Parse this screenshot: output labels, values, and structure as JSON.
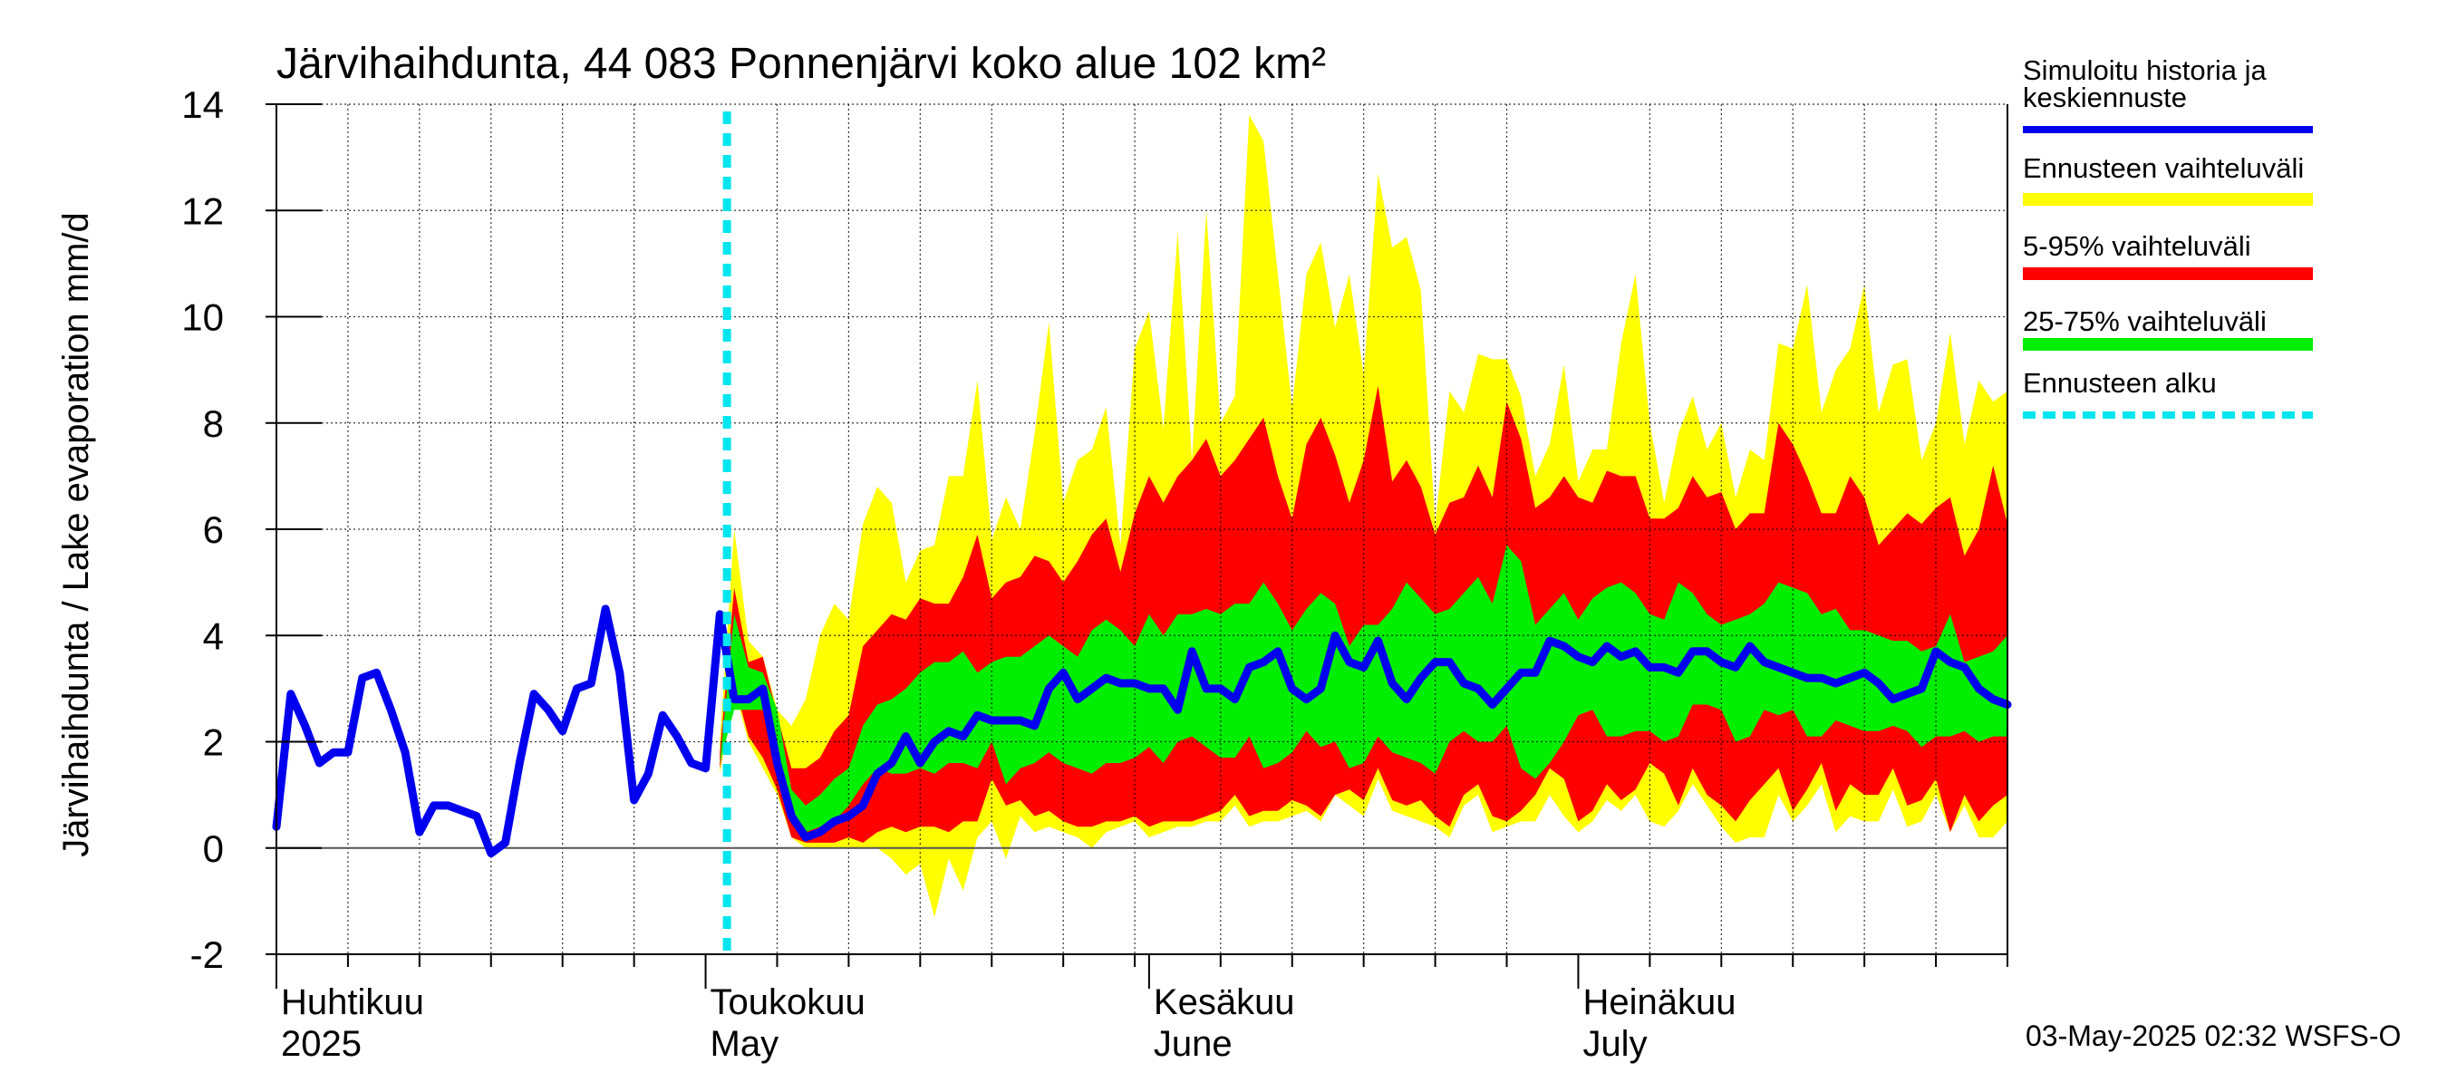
{
  "chart_data": {
    "type": "area",
    "title": "Järvihaihdunta, 44 083 Ponnenjärvi koko alue 102 km²",
    "ylabel": "Järvihaihdunta / Lake evaporation   mm/d",
    "xlabel": "",
    "ylim": [
      -2,
      14
    ],
    "yticks": [
      "-2",
      "0",
      "2",
      "4",
      "6",
      "8",
      "10",
      "12",
      "14"
    ],
    "x_start": "2025-04-01",
    "x_end": "2025-07-31",
    "grid": true,
    "legend_position": "right",
    "month_labels": [
      {
        "date": "2025-04-01",
        "line1": "Huhtikuu",
        "line2": "2025"
      },
      {
        "date": "2025-05-01",
        "line1": "Toukokuu",
        "line2": "May"
      },
      {
        "date": "2025-06-01",
        "line1": "Kesäkuu",
        "line2": "June"
      },
      {
        "date": "2025-07-01",
        "line1": "Heinäkuu",
        "line2": "July"
      }
    ],
    "forecast_start": "2025-05-03",
    "timestamp": "03-May-2025 02:32 WSFS-O",
    "legend": [
      {
        "label": "Simuloitu historia ja",
        "label2": "keskiennuste",
        "color": "#0000ee",
        "kind": "line"
      },
      {
        "label": "Ennusteen vaihteluväli",
        "color": "#ffff00",
        "kind": "band"
      },
      {
        "label": "5-95% vaihteluväli",
        "color": "#ff0000",
        "kind": "band"
      },
      {
        "label": "25-75% vaihteluväli",
        "color": "#00ee00",
        "kind": "band"
      },
      {
        "label": "Ennusteen alku",
        "color": "#00e5ee",
        "kind": "dashed"
      }
    ],
    "forecast_dates": [
      "2025-05-02",
      "2025-05-03",
      "2025-05-04",
      "2025-05-05",
      "2025-05-06",
      "2025-05-07",
      "2025-05-08",
      "2025-05-09",
      "2025-05-10",
      "2025-05-11",
      "2025-05-12",
      "2025-05-13",
      "2025-05-14",
      "2025-05-15",
      "2025-05-16",
      "2025-05-17",
      "2025-05-18",
      "2025-05-19",
      "2025-05-20",
      "2025-05-21",
      "2025-05-22",
      "2025-05-23",
      "2025-05-24",
      "2025-05-25",
      "2025-05-26",
      "2025-05-27",
      "2025-05-28",
      "2025-05-29",
      "2025-05-30",
      "2025-05-31",
      "2025-06-01",
      "2025-06-02",
      "2025-06-03",
      "2025-06-04",
      "2025-06-05",
      "2025-06-06",
      "2025-06-07",
      "2025-06-08",
      "2025-06-09",
      "2025-06-10",
      "2025-06-11",
      "2025-06-12",
      "2025-06-13",
      "2025-06-14",
      "2025-06-15",
      "2025-06-16",
      "2025-06-17",
      "2025-06-18",
      "2025-06-19",
      "2025-06-20",
      "2025-06-21",
      "2025-06-22",
      "2025-06-23",
      "2025-06-24",
      "2025-06-25",
      "2025-06-26",
      "2025-06-27",
      "2025-06-28",
      "2025-06-29",
      "2025-06-30",
      "2025-07-01",
      "2025-07-02",
      "2025-07-03",
      "2025-07-04",
      "2025-07-05",
      "2025-07-06",
      "2025-07-07",
      "2025-07-08",
      "2025-07-09",
      "2025-07-10",
      "2025-07-11",
      "2025-07-12",
      "2025-07-13",
      "2025-07-14",
      "2025-07-15",
      "2025-07-16",
      "2025-07-17",
      "2025-07-18",
      "2025-07-19",
      "2025-07-20",
      "2025-07-21",
      "2025-07-22",
      "2025-07-23",
      "2025-07-24",
      "2025-07-25",
      "2025-07-26",
      "2025-07-27",
      "2025-07-28",
      "2025-07-29",
      "2025-07-30",
      "2025-07-31"
    ],
    "series": [
      {
        "name": "Ennusteen vaihteluväli",
        "role": "band_outer",
        "lower": [
          1.4,
          3.0,
          2.0,
          1.5,
          1.0,
          0.2,
          0.0,
          0.0,
          0.0,
          0.0,
          0.0,
          0.0,
          -0.2,
          -0.5,
          -0.3,
          -1.3,
          -0.2,
          -0.8,
          0.2,
          0.5,
          -0.2,
          0.6,
          0.3,
          0.4,
          0.3,
          0.2,
          0.0,
          0.3,
          0.4,
          0.5,
          0.2,
          0.3,
          0.4,
          0.4,
          0.5,
          0.5,
          0.8,
          0.4,
          0.5,
          0.5,
          0.6,
          0.7,
          0.5,
          1.0,
          0.8,
          0.6,
          1.3,
          0.7,
          0.6,
          0.5,
          0.4,
          0.2,
          0.8,
          1.0,
          0.3,
          0.4,
          0.5,
          0.5,
          1.0,
          0.6,
          0.3,
          0.5,
          0.9,
          0.7,
          1.0,
          0.5,
          0.4,
          0.7,
          1.2,
          0.8,
          0.4,
          0.1,
          0.2,
          0.2,
          1.0,
          0.5,
          0.8,
          1.2,
          0.3,
          0.6,
          0.5,
          0.5,
          1.1,
          0.4,
          0.5,
          1.0,
          0.3,
          0.8,
          0.2,
          0.2,
          0.5
        ],
        "upper": [
          2.0,
          6.0,
          3.9,
          3.6,
          2.6,
          2.3,
          2.8,
          4.0,
          4.6,
          4.3,
          6.1,
          6.8,
          6.5,
          5.0,
          5.6,
          5.7,
          7.0,
          7.0,
          8.8,
          5.8,
          6.6,
          6.0,
          7.8,
          9.9,
          6.5,
          7.3,
          7.5,
          8.3,
          5.7,
          9.4,
          10.1,
          7.9,
          11.6,
          7.3,
          12.0,
          8.0,
          8.5,
          13.8,
          13.3,
          10.8,
          8.3,
          10.8,
          11.4,
          9.8,
          10.8,
          8.9,
          12.7,
          11.3,
          11.5,
          10.5,
          6.1,
          8.6,
          8.2,
          9.3,
          9.2,
          9.2,
          8.5,
          7.0,
          7.6,
          9.1,
          6.9,
          7.5,
          7.5,
          9.5,
          10.8,
          8.0,
          6.5,
          7.8,
          8.5,
          7.5,
          8.0,
          6.6,
          7.5,
          7.3,
          9.5,
          9.4,
          10.6,
          8.2,
          9.0,
          9.4,
          10.6,
          8.2,
          9.1,
          9.2,
          7.3,
          8.0,
          9.7,
          7.6,
          8.8,
          8.4,
          8.6
        ]
      },
      {
        "name": "5-95% vaihteluväli",
        "role": "band_inner",
        "lower": [
          1.5,
          3.1,
          2.1,
          1.7,
          1.1,
          0.2,
          0.1,
          0.1,
          0.1,
          0.2,
          0.1,
          0.3,
          0.4,
          0.3,
          0.4,
          0.4,
          0.3,
          0.5,
          0.5,
          1.3,
          0.8,
          0.9,
          0.6,
          0.7,
          0.5,
          0.4,
          0.4,
          0.5,
          0.5,
          0.6,
          0.4,
          0.5,
          0.5,
          0.5,
          0.6,
          0.7,
          1.0,
          0.6,
          0.7,
          0.7,
          0.9,
          0.8,
          0.6,
          1.0,
          1.1,
          0.9,
          1.5,
          0.9,
          0.8,
          0.9,
          0.6,
          0.4,
          1.0,
          1.2,
          0.6,
          0.5,
          0.7,
          1.0,
          1.5,
          1.3,
          0.5,
          0.7,
          1.2,
          0.9,
          1.1,
          1.6,
          1.4,
          0.8,
          1.5,
          1.0,
          0.8,
          0.5,
          0.9,
          1.2,
          1.5,
          0.7,
          1.1,
          1.6,
          0.7,
          1.2,
          1.0,
          1.0,
          1.5,
          0.8,
          0.9,
          1.3,
          0.3,
          1.0,
          0.5,
          0.8,
          1.0
        ],
        "upper": [
          1.8,
          4.9,
          3.5,
          3.6,
          2.5,
          1.5,
          1.5,
          1.7,
          2.2,
          2.5,
          3.8,
          4.1,
          4.4,
          4.3,
          4.7,
          4.6,
          4.6,
          5.1,
          5.9,
          4.7,
          5.0,
          5.1,
          5.5,
          5.4,
          5.0,
          5.4,
          5.9,
          6.2,
          5.2,
          6.3,
          7.0,
          6.5,
          7.0,
          7.3,
          7.7,
          7.0,
          7.3,
          7.7,
          8.1,
          7.0,
          6.2,
          7.6,
          8.1,
          7.4,
          6.5,
          7.3,
          8.7,
          6.9,
          7.3,
          6.8,
          5.9,
          6.5,
          6.6,
          7.2,
          6.6,
          8.4,
          7.7,
          6.4,
          6.6,
          7.0,
          6.6,
          6.5,
          7.1,
          7.0,
          7.0,
          6.2,
          6.2,
          6.4,
          7.0,
          6.6,
          6.7,
          6.0,
          6.3,
          6.3,
          8.0,
          7.6,
          7.0,
          6.3,
          6.3,
          7.0,
          6.6,
          5.7,
          6.0,
          6.3,
          6.1,
          6.4,
          6.6,
          5.5,
          6.0,
          7.2,
          6.1
        ]
      },
      {
        "name": "25-75% vaihteluväli",
        "role": "band_core",
        "lower": [
          1.6,
          2.6,
          2.6,
          2.6,
          1.4,
          0.5,
          0.3,
          0.4,
          0.5,
          0.8,
          1.2,
          1.5,
          1.4,
          1.4,
          1.5,
          1.4,
          1.6,
          1.6,
          1.5,
          2.0,
          1.2,
          1.5,
          1.6,
          1.8,
          1.6,
          1.5,
          1.4,
          1.6,
          1.6,
          1.7,
          1.9,
          1.6,
          2.0,
          2.1,
          1.9,
          1.7,
          1.7,
          2.1,
          1.5,
          1.6,
          1.8,
          2.2,
          1.9,
          2.0,
          1.5,
          1.6,
          2.1,
          1.8,
          1.7,
          1.6,
          1.4,
          2.0,
          2.2,
          2.0,
          2.0,
          2.3,
          1.5,
          1.3,
          1.6,
          2.0,
          2.5,
          2.6,
          2.1,
          2.1,
          2.2,
          2.2,
          2.0,
          2.1,
          2.7,
          2.7,
          2.6,
          2.0,
          2.1,
          2.6,
          2.5,
          2.6,
          2.1,
          2.1,
          2.4,
          2.3,
          2.2,
          2.2,
          2.3,
          2.2,
          1.9,
          2.1,
          2.1,
          2.2,
          2.0,
          2.1,
          2.1
        ],
        "upper": [
          1.6,
          4.4,
          3.4,
          3.3,
          2.6,
          1.1,
          0.8,
          1.0,
          1.3,
          1.5,
          2.3,
          2.7,
          2.8,
          3.0,
          3.3,
          3.5,
          3.5,
          3.7,
          3.3,
          3.5,
          3.6,
          3.6,
          3.8,
          4.0,
          3.8,
          3.6,
          4.1,
          4.3,
          4.1,
          3.8,
          4.4,
          4.0,
          4.4,
          4.4,
          4.5,
          4.4,
          4.6,
          4.6,
          5.0,
          4.6,
          4.1,
          4.5,
          4.8,
          4.6,
          3.8,
          4.2,
          4.2,
          4.5,
          5.0,
          4.7,
          4.4,
          4.5,
          4.8,
          5.1,
          4.6,
          5.7,
          5.4,
          4.2,
          4.5,
          4.8,
          4.3,
          4.7,
          4.9,
          5.0,
          4.8,
          4.4,
          4.3,
          5.0,
          4.8,
          4.4,
          4.2,
          4.3,
          4.4,
          4.6,
          5.0,
          4.9,
          4.8,
          4.4,
          4.5,
          4.1,
          4.1,
          4.0,
          3.9,
          3.9,
          3.7,
          3.8,
          4.4,
          3.5,
          3.6,
          3.7,
          4.0
        ]
      },
      {
        "name": "Simuloitu historia ja keskiennuste",
        "role": "median",
        "x": [
          "2025-04-01",
          "2025-04-02",
          "2025-04-03",
          "2025-04-04",
          "2025-04-05",
          "2025-04-06",
          "2025-04-07",
          "2025-04-08",
          "2025-04-09",
          "2025-04-10",
          "2025-04-11",
          "2025-04-12",
          "2025-04-13",
          "2025-04-14",
          "2025-04-15",
          "2025-04-16",
          "2025-04-17",
          "2025-04-18",
          "2025-04-19",
          "2025-04-20",
          "2025-04-21",
          "2025-04-22",
          "2025-04-23",
          "2025-04-24",
          "2025-04-25",
          "2025-04-26",
          "2025-04-27",
          "2025-04-28",
          "2025-04-29",
          "2025-04-30",
          "2025-05-01",
          "2025-05-02",
          "2025-05-03",
          "2025-05-04",
          "2025-05-05",
          "2025-05-06",
          "2025-05-07",
          "2025-05-08",
          "2025-05-09",
          "2025-05-10",
          "2025-05-11",
          "2025-05-12",
          "2025-05-13",
          "2025-05-14",
          "2025-05-15",
          "2025-05-16",
          "2025-05-17",
          "2025-05-18",
          "2025-05-19",
          "2025-05-20",
          "2025-05-21",
          "2025-05-22",
          "2025-05-23",
          "2025-05-24",
          "2025-05-25",
          "2025-05-26",
          "2025-05-27",
          "2025-05-28",
          "2025-05-29",
          "2025-05-30",
          "2025-05-31",
          "2025-06-01",
          "2025-06-02",
          "2025-06-03",
          "2025-06-04",
          "2025-06-05",
          "2025-06-06",
          "2025-06-07",
          "2025-06-08",
          "2025-06-09",
          "2025-06-10",
          "2025-06-11",
          "2025-06-12",
          "2025-06-13",
          "2025-06-14",
          "2025-06-15",
          "2025-06-16",
          "2025-06-17",
          "2025-06-18",
          "2025-06-19",
          "2025-06-20",
          "2025-06-21",
          "2025-06-22",
          "2025-06-23",
          "2025-06-24",
          "2025-06-25",
          "2025-06-26",
          "2025-06-27",
          "2025-06-28",
          "2025-06-29",
          "2025-06-30",
          "2025-07-01",
          "2025-07-02",
          "2025-07-03",
          "2025-07-04",
          "2025-07-05",
          "2025-07-06",
          "2025-07-07",
          "2025-07-08",
          "2025-07-09",
          "2025-07-10",
          "2025-07-11",
          "2025-07-12",
          "2025-07-13",
          "2025-07-14",
          "2025-07-15",
          "2025-07-16",
          "2025-07-17",
          "2025-07-18",
          "2025-07-19",
          "2025-07-20",
          "2025-07-21",
          "2025-07-22",
          "2025-07-23",
          "2025-07-24",
          "2025-07-25",
          "2025-07-26",
          "2025-07-27",
          "2025-07-28",
          "2025-07-29",
          "2025-07-30",
          "2025-07-31"
        ],
        "values": [
          0.4,
          2.9,
          2.3,
          1.6,
          1.8,
          1.8,
          3.2,
          3.3,
          2.6,
          1.8,
          0.3,
          0.8,
          0.8,
          0.7,
          0.6,
          -0.1,
          0.1,
          1.6,
          2.9,
          2.6,
          2.2,
          3.0,
          3.1,
          4.5,
          3.3,
          0.9,
          1.4,
          2.5,
          2.1,
          1.6,
          1.5,
          4.4,
          2.8,
          2.8,
          3.0,
          1.6,
          0.6,
          0.2,
          0.3,
          0.5,
          0.6,
          0.8,
          1.4,
          1.6,
          2.1,
          1.6,
          2.0,
          2.2,
          2.1,
          2.5,
          2.4,
          2.4,
          2.4,
          2.3,
          3.0,
          3.3,
          2.8,
          3.0,
          3.2,
          3.1,
          3.1,
          3.0,
          3.0,
          2.6,
          3.7,
          3.0,
          3.0,
          2.8,
          3.4,
          3.5,
          3.7,
          3.0,
          2.8,
          3.0,
          4.0,
          3.5,
          3.4,
          3.9,
          3.1,
          2.8,
          3.2,
          3.5,
          3.5,
          3.1,
          3.0,
          2.7,
          3.0,
          3.3,
          3.3,
          3.9,
          3.8,
          3.6,
          3.5,
          3.8,
          3.6,
          3.7,
          3.4,
          3.4,
          3.3,
          3.7,
          3.7,
          3.5,
          3.4,
          3.8,
          3.5,
          3.4,
          3.3,
          3.2,
          3.2,
          3.1,
          3.2,
          3.3,
          3.1,
          2.8,
          2.9,
          3.0,
          3.7,
          3.5,
          3.4,
          3.0,
          2.8,
          2.7
        ]
      }
    ]
  }
}
